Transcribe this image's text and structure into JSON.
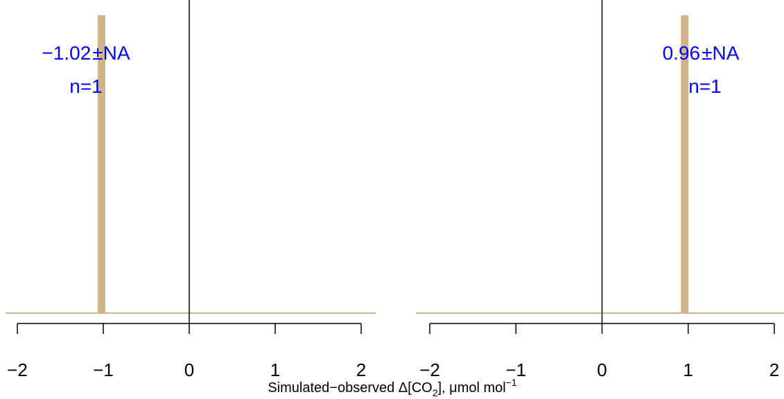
{
  "chart_data": {
    "type": "bar",
    "xlabel": "Simulated−observed Δ[CO2], μmol mol−1",
    "xlabel_parts": {
      "prefix": "Simulated−observed Δ[CO",
      "sub": "2",
      "middle": "], μmol mol",
      "sup": "−1"
    },
    "colors": {
      "bar": "#d2b48c",
      "annotation": "#0000ff",
      "zero_line": "#000000"
    },
    "panels": [
      {
        "xlim": [
          -2.15,
          2.15
        ],
        "ticks": [
          -2,
          -1,
          0,
          1,
          2
        ],
        "tick_labels": [
          "−2",
          "−1",
          "0",
          "1",
          "2"
        ],
        "bars": [
          {
            "x": -1.02,
            "height": 1.0
          }
        ],
        "annotation": {
          "stat": "−1.02",
          "pm": "±",
          "err": "NA",
          "n": "n=1",
          "position": "top-left"
        }
      },
      {
        "xlim": [
          -2.15,
          2.15
        ],
        "ticks": [
          -2,
          -1,
          0,
          1,
          2
        ],
        "tick_labels": [
          "−2",
          "−1",
          "0",
          "1",
          "2"
        ],
        "bars": [
          {
            "x": 0.96,
            "height": 1.0
          }
        ],
        "annotation": {
          "stat": "0.96",
          "pm": "±",
          "err": "NA",
          "n": "n=1",
          "position": "top-right"
        }
      }
    ]
  }
}
